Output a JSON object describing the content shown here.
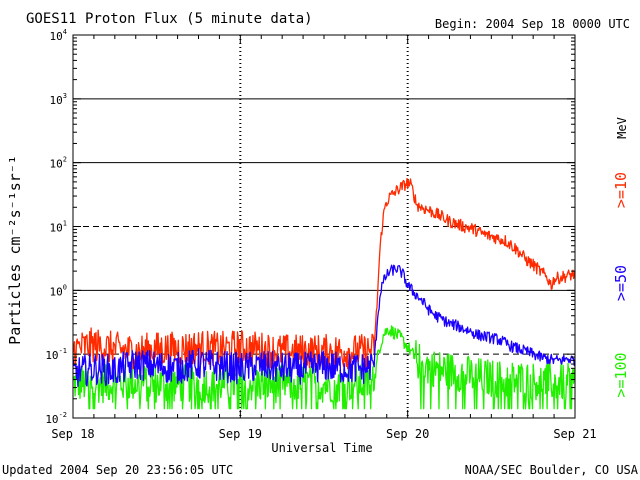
{
  "chart_data": {
    "type": "line",
    "title": "GOES11 Proton Flux (5 minute data)",
    "begin_label": "Begin: 2004 Sep 18 0000 UTC",
    "xlabel": "Universal Time",
    "ylabel": "Particles cm⁻²s⁻¹sr⁻¹",
    "footer_left": "Updated 2004 Sep 20 23:56:05 UTC",
    "footer_right": "NOAA/SEC Boulder, CO USA",
    "units_label": "MeV",
    "yscale": "log",
    "ylim": [
      0.01,
      10000
    ],
    "y_ticks": [
      {
        "value": 0.01,
        "base": "10",
        "exp": "-2"
      },
      {
        "value": 0.1,
        "base": "10",
        "exp": "-1"
      },
      {
        "value": 1,
        "base": "10",
        "exp": "0"
      },
      {
        "value": 10,
        "base": "10",
        "exp": "1"
      },
      {
        "value": 100,
        "base": "10",
        "exp": "2"
      },
      {
        "value": 1000,
        "base": "10",
        "exp": "3"
      },
      {
        "value": 10000,
        "base": "10",
        "exp": "4"
      }
    ],
    "xlim": [
      0,
      72
    ],
    "x_tick_labels": [
      {
        "hours": 0,
        "label": "Sep 18"
      },
      {
        "hours": 24,
        "label": "Sep 19"
      },
      {
        "hours": 48,
        "label": "Sep 20"
      },
      {
        "hours": 72,
        "label": "Sep 21"
      }
    ],
    "threshold_lines": [
      {
        "value": 10,
        "style": "dashed"
      },
      {
        "value": 0.1,
        "style": "dashed"
      }
    ],
    "series": [
      {
        "name": ">=10",
        "color": "#ff2a00",
        "points": [
          [
            0,
            0.12
          ],
          [
            3,
            0.14
          ],
          [
            6,
            0.12
          ],
          [
            9,
            0.11
          ],
          [
            12,
            0.12
          ],
          [
            15,
            0.12
          ],
          [
            18,
            0.13
          ],
          [
            21,
            0.12
          ],
          [
            24,
            0.13
          ],
          [
            27,
            0.12
          ],
          [
            30,
            0.11
          ],
          [
            33,
            0.11
          ],
          [
            36,
            0.11
          ],
          [
            39,
            0.11
          ],
          [
            42,
            0.11
          ],
          [
            43.2,
            0.12
          ],
          [
            43.6,
            0.6
          ],
          [
            44.0,
            4
          ],
          [
            44.4,
            12
          ],
          [
            44.8,
            22
          ],
          [
            45.3,
            28
          ],
          [
            46,
            33
          ],
          [
            46.6,
            38
          ],
          [
            47.2,
            42
          ],
          [
            47.9,
            48
          ],
          [
            48.4,
            45
          ],
          [
            48.8,
            35
          ],
          [
            49.3,
            22
          ],
          [
            50,
            20
          ],
          [
            51,
            18
          ],
          [
            52,
            16
          ],
          [
            53,
            14
          ],
          [
            54,
            12
          ],
          [
            55,
            11
          ],
          [
            56,
            10
          ],
          [
            57,
            9.5
          ],
          [
            58,
            8.5
          ],
          [
            59,
            7.5
          ],
          [
            60,
            7
          ],
          [
            61,
            6.5
          ],
          [
            62,
            6
          ],
          [
            63,
            5
          ],
          [
            64,
            4
          ],
          [
            65,
            3
          ],
          [
            66,
            2.5
          ],
          [
            67,
            2
          ],
          [
            68,
            1.6
          ],
          [
            68.6,
            1.2
          ],
          [
            69,
            1.5
          ],
          [
            70,
            1.6
          ],
          [
            71,
            1.7
          ],
          [
            72,
            1.8
          ]
        ]
      },
      {
        "name": ">=50",
        "color": "#1a00ff",
        "points": [
          [
            0,
            0.05
          ],
          [
            3,
            0.06
          ],
          [
            6,
            0.055
          ],
          [
            9,
            0.07
          ],
          [
            12,
            0.065
          ],
          [
            15,
            0.06
          ],
          [
            18,
            0.07
          ],
          [
            21,
            0.065
          ],
          [
            24,
            0.06
          ],
          [
            27,
            0.065
          ],
          [
            30,
            0.06
          ],
          [
            33,
            0.06
          ],
          [
            36,
            0.065
          ],
          [
            39,
            0.06
          ],
          [
            42,
            0.06
          ],
          [
            43.2,
            0.07
          ],
          [
            43.7,
            0.4
          ],
          [
            44.2,
            1.1
          ],
          [
            44.8,
            1.6
          ],
          [
            45.5,
            2.0
          ],
          [
            46.5,
            2.2
          ],
          [
            47.3,
            1.8
          ],
          [
            48,
            1.2
          ],
          [
            49,
            0.9
          ],
          [
            50,
            0.7
          ],
          [
            51,
            0.5
          ],
          [
            52,
            0.4
          ],
          [
            53,
            0.35
          ],
          [
            54,
            0.3
          ],
          [
            55,
            0.28
          ],
          [
            56,
            0.25
          ],
          [
            57,
            0.23
          ],
          [
            58,
            0.2
          ],
          [
            59,
            0.19
          ],
          [
            60,
            0.18
          ],
          [
            61,
            0.17
          ],
          [
            62,
            0.15
          ],
          [
            63,
            0.13
          ],
          [
            64,
            0.12
          ],
          [
            65,
            0.11
          ],
          [
            66,
            0.1
          ],
          [
            67,
            0.09
          ],
          [
            68,
            0.085
          ],
          [
            69,
            0.08
          ],
          [
            70,
            0.08
          ],
          [
            71,
            0.085
          ],
          [
            72,
            0.08
          ]
        ]
      },
      {
        "name": ">=100",
        "color": "#22ee00",
        "points": [
          [
            0,
            0.035
          ],
          [
            4,
            0.034
          ],
          [
            8,
            0.036
          ],
          [
            12,
            0.034
          ],
          [
            16,
            0.035
          ],
          [
            20,
            0.034
          ],
          [
            24,
            0.035
          ],
          [
            28,
            0.034
          ],
          [
            32,
            0.035
          ],
          [
            36,
            0.034
          ],
          [
            40,
            0.035
          ],
          [
            43.2,
            0.035
          ],
          [
            43.8,
            0.11
          ],
          [
            44.5,
            0.2
          ],
          [
            45.2,
            0.25
          ],
          [
            46,
            0.22
          ],
          [
            47,
            0.18
          ],
          [
            48,
            0.13
          ],
          [
            49,
            0.09
          ],
          [
            50,
            0.07
          ],
          [
            52,
            0.06
          ],
          [
            54,
            0.055
          ],
          [
            56,
            0.05
          ],
          [
            58,
            0.045
          ],
          [
            60,
            0.042
          ],
          [
            62,
            0.04
          ],
          [
            64,
            0.04
          ],
          [
            66,
            0.038
          ],
          [
            68,
            0.037
          ],
          [
            70,
            0.036
          ],
          [
            72,
            0.036
          ]
        ]
      }
    ]
  }
}
